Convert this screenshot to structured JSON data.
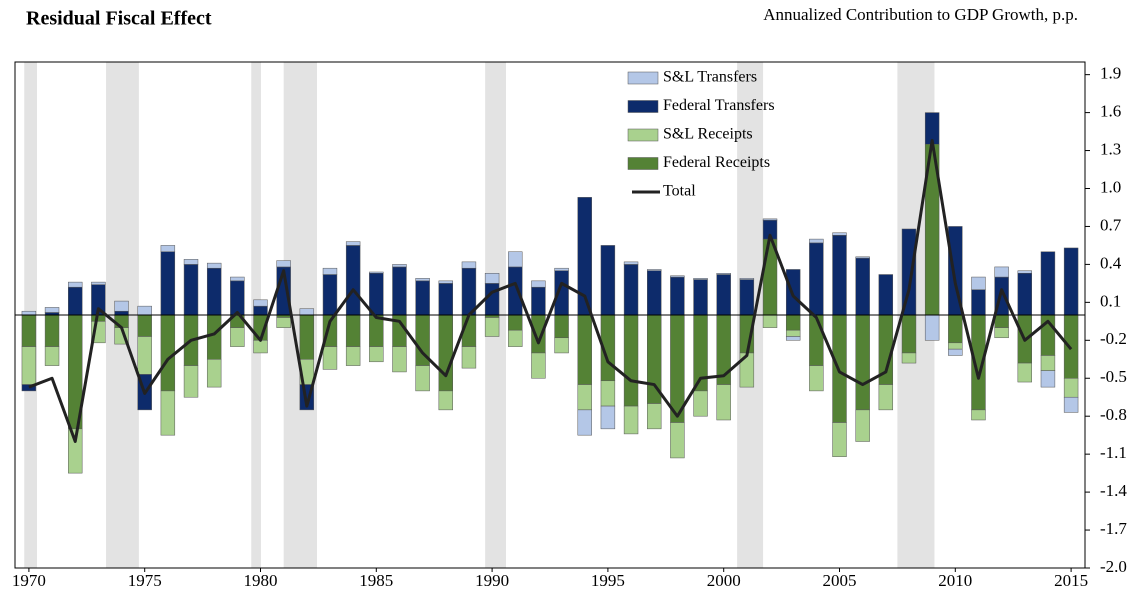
{
  "chart_data": {
    "type": "bar",
    "title": "Residual Fiscal Effect",
    "subtitle": "Annualized Contribution to GDP Growth, p.p.",
    "x": [
      1970,
      1971,
      1972,
      1973,
      1974,
      1975,
      1976,
      1977,
      1978,
      1979,
      1980,
      1981,
      1982,
      1983,
      1984,
      1985,
      1986,
      1987,
      1988,
      1989,
      1990,
      1991,
      1992,
      1993,
      1994,
      1995,
      1996,
      1997,
      1998,
      1999,
      2000,
      2001,
      2002,
      2003,
      2004,
      2005,
      2006,
      2007,
      2008,
      2009,
      2010,
      2011,
      2012,
      2013,
      2014,
      2015
    ],
    "series": [
      {
        "name": "S&L Transfers",
        "color": "#b4c7e7",
        "values": [
          0.03,
          0.04,
          0.04,
          0.02,
          0.08,
          0.07,
          0.05,
          0.04,
          0.04,
          0.03,
          0.05,
          0.05,
          0.05,
          0.05,
          0.03,
          0.01,
          0.02,
          0.02,
          0.02,
          0.05,
          0.08,
          0.12,
          0.05,
          0.02,
          -0.2,
          -0.18,
          0.02,
          0.01,
          0.01,
          0.01,
          0.01,
          0.01,
          0.01,
          -0.03,
          0.03,
          0.02,
          0.01,
          0,
          0,
          -0.2,
          -0.05,
          0.1,
          0.08,
          0.02,
          -0.13,
          -0.12
        ]
      },
      {
        "name": "Federal Transfers",
        "color": "#0d2b6b",
        "values": [
          -0.05,
          0.02,
          0.22,
          0.24,
          0.03,
          -0.28,
          0.5,
          0.4,
          0.37,
          0.27,
          0.07,
          0.38,
          -0.2,
          0.32,
          0.55,
          0.33,
          0.38,
          0.27,
          0.25,
          0.37,
          0.25,
          0.38,
          0.22,
          0.35,
          0.93,
          0.55,
          0.4,
          0.35,
          0.3,
          0.28,
          0.32,
          0.28,
          0.15,
          0.36,
          0.57,
          0.63,
          0.45,
          0.32,
          0.68,
          0.25,
          0.7,
          0.2,
          0.3,
          0.33,
          0.5,
          0.53
        ]
      },
      {
        "name": "S&L Receipts",
        "color": "#a9d18e",
        "values": [
          -0.3,
          -0.15,
          -0.35,
          -0.17,
          -0.13,
          -0.3,
          -0.35,
          -0.25,
          -0.22,
          -0.15,
          -0.1,
          -0.08,
          -0.2,
          -0.18,
          -0.15,
          -0.12,
          -0.2,
          -0.2,
          -0.15,
          -0.17,
          -0.15,
          -0.13,
          -0.2,
          -0.12,
          -0.2,
          -0.2,
          -0.22,
          -0.2,
          -0.28,
          -0.2,
          -0.28,
          -0.27,
          -0.1,
          -0.05,
          -0.2,
          -0.27,
          -0.25,
          -0.2,
          -0.08,
          0,
          -0.05,
          -0.08,
          -0.08,
          -0.15,
          -0.12,
          -0.15
        ]
      },
      {
        "name": "Federal Receipts",
        "color": "#548235",
        "values": [
          -0.25,
          -0.25,
          -0.9,
          -0.05,
          -0.1,
          -0.17,
          -0.6,
          -0.4,
          -0.35,
          -0.1,
          -0.2,
          -0.02,
          -0.35,
          -0.25,
          -0.25,
          -0.25,
          -0.25,
          -0.4,
          -0.6,
          -0.25,
          -0.02,
          -0.12,
          -0.3,
          -0.18,
          -0.55,
          -0.52,
          -0.72,
          -0.7,
          -0.85,
          -0.6,
          -0.55,
          -0.3,
          0.6,
          -0.12,
          -0.4,
          -0.85,
          -0.75,
          -0.55,
          -0.3,
          1.35,
          -0.22,
          -0.75,
          -0.1,
          -0.38,
          -0.32,
          -0.5
        ]
      }
    ],
    "line": {
      "name": "Total",
      "color": "#222222",
      "values": [
        -0.57,
        -0.5,
        -1.0,
        0.05,
        -0.1,
        -0.62,
        -0.35,
        -0.2,
        -0.15,
        0.02,
        -0.2,
        0.35,
        -0.72,
        -0.05,
        0.2,
        -0.02,
        -0.05,
        -0.3,
        -0.48,
        0.0,
        0.18,
        0.25,
        -0.22,
        0.25,
        0.15,
        -0.37,
        -0.52,
        -0.55,
        -0.8,
        -0.5,
        -0.48,
        -0.32,
        0.63,
        0.15,
        -0.02,
        -0.45,
        -0.55,
        -0.45,
        0.2,
        1.38,
        0.25,
        -0.5,
        0.2,
        -0.2,
        -0.05,
        -0.27
      ]
    },
    "recessions": [
      [
        1969.8,
        1970.35
      ],
      [
        1973.33,
        1974.75
      ],
      [
        1979.6,
        1980.02
      ],
      [
        1981.0,
        1982.44
      ],
      [
        1989.7,
        1990.6
      ],
      [
        2000.58,
        2001.7
      ],
      [
        2007.5,
        2009.1
      ]
    ],
    "recession_color": "#e3e3e3",
    "xlim": [
      1969.4,
      2015.6
    ],
    "xticks": [
      1970,
      1975,
      1980,
      1985,
      1990,
      1995,
      2000,
      2005,
      2010,
      2015
    ],
    "ylim": [
      -2.0,
      2.0
    ],
    "yticks": [
      1.9,
      1.6,
      1.3,
      {
        "value": 1,
        "label": "1.0"
      },
      0.7,
      0.4,
      0.1,
      -0.2,
      -0.5,
      -0.8,
      -1.1,
      -1.4,
      -1.7,
      {
        "value": -2,
        "label": "-2.0"
      }
    ]
  }
}
